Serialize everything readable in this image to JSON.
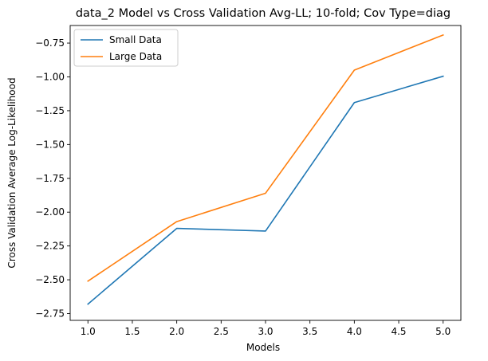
{
  "chart_data": {
    "type": "line",
    "title": "data_2 Model vs Cross Validation Avg-LL; 10-fold; Cov Type=diag",
    "xlabel": "Models",
    "ylabel": "Cross Validation Average Log-Likelihood",
    "x": [
      1.0,
      2.0,
      3.0,
      4.0,
      5.0
    ],
    "series": [
      {
        "name": "Small Data",
        "color": "#1f77b4",
        "values": [
          -2.68,
          -2.12,
          -2.14,
          -1.19,
          -0.995
        ]
      },
      {
        "name": "Large Data",
        "color": "#ff7f0e",
        "values": [
          -2.51,
          -2.07,
          -1.86,
          -0.95,
          -0.69
        ]
      }
    ],
    "xlim": [
      0.8,
      5.2
    ],
    "ylim": [
      -2.8,
      -0.62
    ],
    "xticks": [
      1.0,
      1.5,
      2.0,
      2.5,
      3.0,
      3.5,
      4.0,
      4.5,
      5.0
    ],
    "xtick_labels": [
      "1.0",
      "1.5",
      "2.0",
      "2.5",
      "3.0",
      "3.5",
      "4.0",
      "4.5",
      "5.0"
    ],
    "yticks": [
      -2.75,
      -2.5,
      -2.25,
      -2.0,
      -1.75,
      -1.5,
      -1.25,
      -1.0,
      -0.75
    ],
    "ytick_labels": [
      "−2.75",
      "−2.50",
      "−2.25",
      "−2.00",
      "−1.75",
      "−1.50",
      "−1.25",
      "−1.00",
      "−0.75"
    ],
    "legend_position": "top-left",
    "grid": false
  }
}
